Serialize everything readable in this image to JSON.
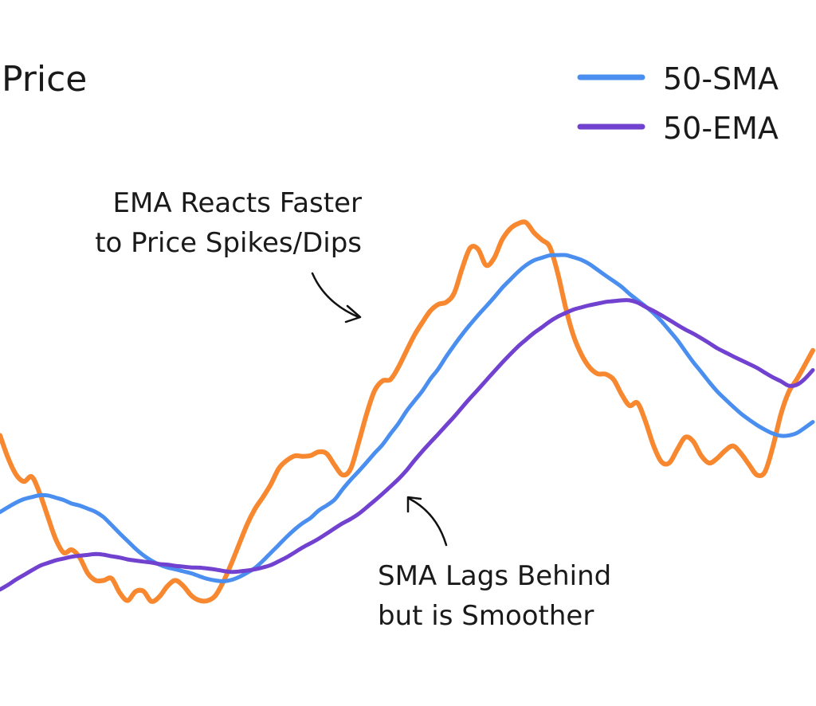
{
  "chart_data": {
    "type": "line",
    "ylabel": "Price",
    "grid": false,
    "legend": "top-right",
    "series": [
      {
        "name": "",
        "color": "#F7882F",
        "x": [
          0,
          10,
          20,
          30,
          40,
          50,
          60,
          70,
          80,
          90,
          100,
          110,
          120,
          130,
          140,
          150,
          160,
          170,
          180,
          190,
          200,
          210,
          220,
          230,
          240,
          250,
          260,
          270,
          280,
          290,
          300,
          310,
          320,
          330,
          340,
          350,
          360,
          370,
          380,
          390,
          400,
          410,
          420,
          430,
          440,
          450,
          460,
          470,
          480,
          490,
          500,
          510,
          520,
          530,
          540,
          550,
          560,
          570,
          580,
          590,
          600,
          610,
          620,
          630,
          640,
          650,
          660,
          670,
          680,
          690,
          700,
          710,
          720,
          730,
          740,
          750,
          760,
          770,
          780,
          790,
          800,
          810,
          820,
          830,
          840,
          850,
          860,
          870,
          880,
          890,
          900,
          910,
          920,
          930,
          940,
          950,
          960,
          970,
          980,
          990,
          1000,
          1010,
          1020
        ],
        "values": [
          8.39,
          7.29,
          6.47,
          6.12,
          6.35,
          5.52,
          4.38,
          3.27,
          2.61,
          2.75,
          2.37,
          1.6,
          1.24,
          1.24,
          1.34,
          0.65,
          0.25,
          0.69,
          0.71,
          0.21,
          0.44,
          0.96,
          1.24,
          0.97,
          0.5,
          0.26,
          0.24,
          0.48,
          1.16,
          2.04,
          3.02,
          3.99,
          4.77,
          5.35,
          5.99,
          6.77,
          7.16,
          7.38,
          7.36,
          7.4,
          7.58,
          7.49,
          6.92,
          6.44,
          6.74,
          8.03,
          9.44,
          10.59,
          11.08,
          11.15,
          11.76,
          12.55,
          13.33,
          13.96,
          14.53,
          14.85,
          14.96,
          15.41,
          16.63,
          17.63,
          17.57,
          16.78,
          17.13,
          18.03,
          18.57,
          18.83,
          18.89,
          18.39,
          18.03,
          17.68,
          16.37,
          14.66,
          13.27,
          12.35,
          11.74,
          11.43,
          11.41,
          11.14,
          10.42,
          9.86,
          9.99,
          9.08,
          7.9,
          7.09,
          7.04,
          7.7,
          8.3,
          8.09,
          7.39,
          7.03,
          7.26,
          7.64,
          7.87,
          7.49,
          6.95,
          6.44,
          6.6,
          7.85,
          9.44,
          10.55,
          11.16,
          11.86,
          12.58
        ]
      },
      {
        "name": "50-SMA",
        "color": "#4A8FEF",
        "x": [
          0,
          10,
          20,
          30,
          40,
          50,
          60,
          70,
          80,
          90,
          100,
          110,
          120,
          130,
          140,
          150,
          160,
          170,
          180,
          190,
          200,
          210,
          220,
          230,
          240,
          250,
          260,
          270,
          280,
          290,
          300,
          310,
          320,
          330,
          340,
          350,
          360,
          370,
          380,
          390,
          400,
          410,
          420,
          430,
          440,
          450,
          460,
          470,
          480,
          490,
          500,
          510,
          520,
          530,
          540,
          550,
          560,
          570,
          580,
          590,
          600,
          610,
          620,
          630,
          640,
          650,
          660,
          670,
          680,
          690,
          700,
          710,
          720,
          730,
          740,
          750,
          760,
          770,
          780,
          790,
          800,
          810,
          820,
          830,
          840,
          850,
          860,
          870,
          880,
          890,
          900,
          910,
          920,
          930,
          940,
          950,
          960,
          970,
          980,
          990,
          1000,
          1010,
          1020
        ],
        "values": [
          4.61,
          4.85,
          5.07,
          5.25,
          5.35,
          5.44,
          5.43,
          5.32,
          5.2,
          5.03,
          4.93,
          4.78,
          4.62,
          4.36,
          3.97,
          3.57,
          3.19,
          2.81,
          2.48,
          2.22,
          2.02,
          1.88,
          1.79,
          1.69,
          1.59,
          1.45,
          1.32,
          1.24,
          1.2,
          1.26,
          1.41,
          1.62,
          1.86,
          2.21,
          2.61,
          3.0,
          3.4,
          3.76,
          4.07,
          4.33,
          4.69,
          4.94,
          5.23,
          5.74,
          6.2,
          6.62,
          7.06,
          7.51,
          7.93,
          8.47,
          8.98,
          9.58,
          10.09,
          10.58,
          11.17,
          11.67,
          12.28,
          12.84,
          13.37,
          13.86,
          14.32,
          14.75,
          15.19,
          15.66,
          16.06,
          16.45,
          16.78,
          17.02,
          17.15,
          17.27,
          17.28,
          17.28,
          17.17,
          17.04,
          16.83,
          16.55,
          16.27,
          16.0,
          15.72,
          15.37,
          15.06,
          14.75,
          14.42,
          14.02,
          13.56,
          13.09,
          12.54,
          12.0,
          11.52,
          11.02,
          10.56,
          10.18,
          9.81,
          9.46,
          9.17,
          8.9,
          8.67,
          8.48,
          8.37,
          8.39,
          8.51,
          8.77,
          9.05
        ]
      },
      {
        "name": "50-EMA",
        "color": "#7141CF",
        "x": [
          0,
          10,
          20,
          30,
          40,
          50,
          60,
          70,
          80,
          90,
          100,
          110,
          120,
          130,
          140,
          150,
          160,
          170,
          180,
          190,
          200,
          210,
          220,
          230,
          240,
          250,
          260,
          270,
          280,
          290,
          300,
          310,
          320,
          330,
          340,
          350,
          360,
          370,
          380,
          390,
          400,
          410,
          420,
          430,
          440,
          450,
          460,
          470,
          480,
          490,
          500,
          510,
          520,
          530,
          540,
          550,
          560,
          570,
          580,
          590,
          600,
          610,
          620,
          630,
          640,
          650,
          660,
          670,
          680,
          690,
          700,
          710,
          720,
          730,
          740,
          750,
          760,
          770,
          780,
          790,
          800,
          810,
          820,
          830,
          840,
          850,
          860,
          870,
          880,
          890,
          900,
          910,
          920,
          930,
          940,
          950,
          960,
          970,
          980,
          990,
          1000,
          1010,
          1020
        ],
        "values": [
          0.79,
          1.02,
          1.28,
          1.51,
          1.74,
          1.96,
          2.1,
          2.23,
          2.32,
          2.41,
          2.46,
          2.5,
          2.54,
          2.51,
          2.43,
          2.37,
          2.28,
          2.22,
          2.17,
          2.12,
          2.05,
          2.02,
          1.96,
          1.92,
          1.88,
          1.87,
          1.83,
          1.78,
          1.71,
          1.66,
          1.68,
          1.73,
          1.79,
          1.88,
          2.0,
          2.19,
          2.39,
          2.63,
          2.87,
          3.08,
          3.3,
          3.55,
          3.81,
          4.06,
          4.27,
          4.52,
          4.84,
          5.17,
          5.51,
          5.87,
          6.24,
          6.66,
          7.15,
          7.61,
          8.04,
          8.46,
          8.89,
          9.32,
          9.78,
          10.23,
          10.66,
          11.1,
          11.54,
          11.97,
          12.38,
          12.77,
          13.11,
          13.44,
          13.72,
          14.01,
          14.25,
          14.43,
          14.6,
          14.71,
          14.81,
          14.89,
          14.97,
          15.01,
          15.05,
          15.05,
          14.94,
          14.73,
          14.53,
          14.31,
          14.08,
          13.84,
          13.61,
          13.41,
          13.18,
          12.94,
          12.69,
          12.49,
          12.29,
          12.1,
          11.91,
          11.72,
          11.48,
          11.25,
          11.06,
          10.84,
          10.89,
          11.18,
          11.61
        ]
      }
    ],
    "xlim": [
      0,
      1024
    ],
    "ylim": [
      0,
      22
    ],
    "annotations": [
      {
        "lines": [
          "EMA Reacts Faster",
          "to Price Spikes/Dips"
        ]
      },
      {
        "lines": [
          "SMA Lags Behind",
          "but is Smoother"
        ]
      }
    ]
  }
}
